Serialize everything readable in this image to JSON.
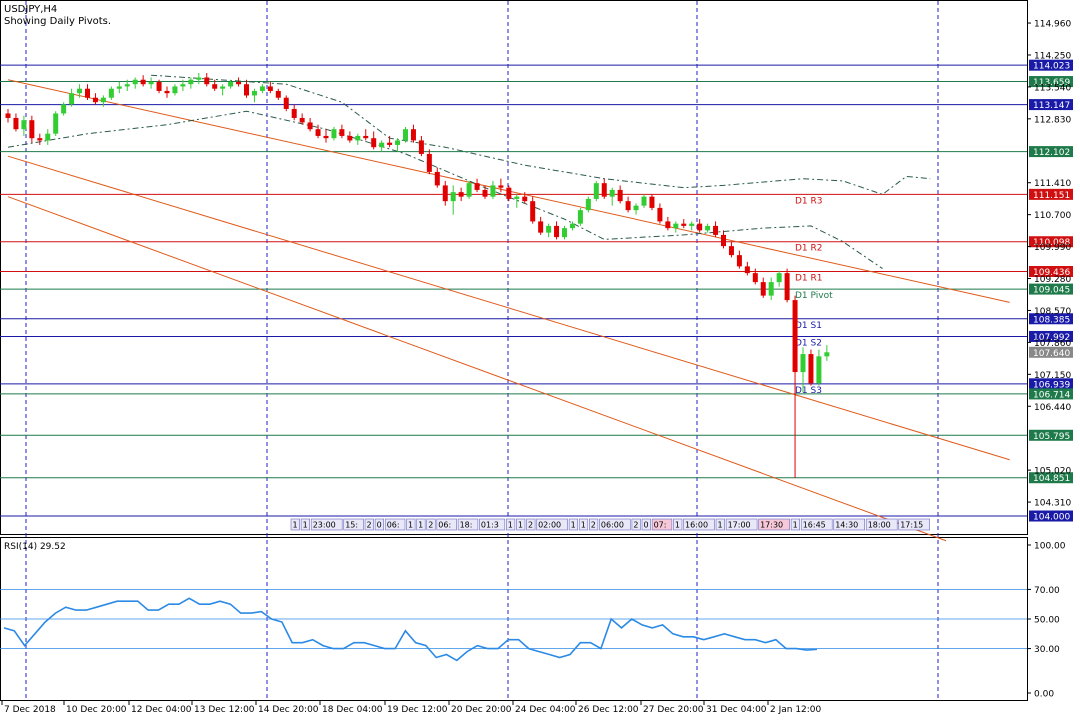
{
  "header": {
    "symbol_line": "USDJPY,H4",
    "subtitle": "Showing Daily Pivots."
  },
  "colors": {
    "bull": "#32cd32",
    "bear": "#e00000",
    "blue_line": "#1a1aa8",
    "green_line": "#1e7a4a",
    "red_line": "#d01010",
    "channel": "#e05a1a",
    "rsi_line": "#2b8ae6",
    "grid_v": "#2020cc"
  },
  "chart_data": [
    {
      "type": "candlestick",
      "title": "USDJPY,H4",
      "subtitle": "Showing Daily Pivots.",
      "ylim": [
        103.6,
        115.45
      ],
      "y_ticks": [
        "114.960",
        "114.250",
        "113.540",
        "112.830",
        "111.410",
        "110.700",
        "109.990",
        "109.280",
        "108.570",
        "107.860",
        "107.150",
        "106.440",
        "105.020",
        "104.310"
      ],
      "x_tick_labels": [
        "7 Dec 2018",
        "10 Dec 20:00",
        "12 Dec 04:00",
        "13 Dec 12:00",
        "14 Dec 20:00",
        "18 Dec 04:00",
        "19 Dec 12:00",
        "20 Dec 20:00",
        "24 Dec 04:00",
        "26 Dec 12:00",
        "27 Dec 20:00",
        "31 Dec 04:00",
        "2 Jan 12:00"
      ],
      "horizontal_levels": [
        {
          "label": "114.023",
          "value": 114.023,
          "kind": "blue",
          "tag": ""
        },
        {
          "label": "113.659",
          "value": 113.659,
          "kind": "green",
          "tag": ""
        },
        {
          "label": "113.147",
          "value": 113.147,
          "kind": "blue",
          "tag": ""
        },
        {
          "label": "112.102",
          "value": 112.102,
          "kind": "green",
          "tag": ""
        },
        {
          "label": "111.151",
          "value": 111.151,
          "kind": "red",
          "tag": "D1 R3"
        },
        {
          "label": "110.098",
          "value": 110.098,
          "kind": "red",
          "tag": "D1 R2"
        },
        {
          "label": "109.436",
          "value": 109.436,
          "kind": "red",
          "tag": "D1 R1"
        },
        {
          "label": "109.045",
          "value": 109.045,
          "kind": "green",
          "tag": "D1 Pivot"
        },
        {
          "label": "108.385",
          "value": 108.385,
          "kind": "blue",
          "tag": "D1 S1"
        },
        {
          "label": "107.992",
          "value": 107.992,
          "kind": "blue",
          "tag": "D1 S2"
        },
        {
          "label": "107.640",
          "value": 107.64,
          "kind": "price",
          "tag": ""
        },
        {
          "label": "106.939",
          "value": 106.939,
          "kind": "blue",
          "tag": "D1 S3"
        },
        {
          "label": "106.714",
          "value": 106.714,
          "kind": "green",
          "tag": ""
        },
        {
          "label": "105.795",
          "value": 105.795,
          "kind": "green",
          "tag": ""
        },
        {
          "label": "104.851",
          "value": 104.851,
          "kind": "green",
          "tag": ""
        },
        {
          "label": "104.000",
          "value": 104.0,
          "kind": "blue",
          "tag": ""
        }
      ],
      "channel_lines": [
        {
          "from_bar": 0,
          "from_value": 113.7,
          "to_bar": 126,
          "to_value": 108.75
        },
        {
          "from_bar": 0,
          "from_value": 112.0,
          "to_bar": 126,
          "to_value": 105.25
        },
        {
          "from_bar": 0,
          "from_value": 111.1,
          "to_bar": 118,
          "to_value": 103.45
        }
      ],
      "candles": [
        {
          "o": 112.95,
          "h": 113.05,
          "l": 112.75,
          "c": 112.85
        },
        {
          "o": 112.85,
          "h": 112.95,
          "l": 112.55,
          "c": 112.6
        },
        {
          "o": 112.6,
          "h": 112.9,
          "l": 112.45,
          "c": 112.8
        },
        {
          "o": 112.8,
          "h": 112.9,
          "l": 112.3,
          "c": 112.4
        },
        {
          "o": 112.4,
          "h": 112.5,
          "l": 112.25,
          "c": 112.35
        },
        {
          "o": 112.35,
          "h": 112.6,
          "l": 112.25,
          "c": 112.5
        },
        {
          "o": 112.5,
          "h": 113.0,
          "l": 112.45,
          "c": 112.95
        },
        {
          "o": 112.95,
          "h": 113.2,
          "l": 112.9,
          "c": 113.15
        },
        {
          "o": 113.15,
          "h": 113.5,
          "l": 113.1,
          "c": 113.4
        },
        {
          "o": 113.4,
          "h": 113.6,
          "l": 113.3,
          "c": 113.5
        },
        {
          "o": 113.5,
          "h": 113.6,
          "l": 113.25,
          "c": 113.3
        },
        {
          "o": 113.3,
          "h": 113.4,
          "l": 113.15,
          "c": 113.2
        },
        {
          "o": 113.2,
          "h": 113.35,
          "l": 113.1,
          "c": 113.3
        },
        {
          "o": 113.3,
          "h": 113.55,
          "l": 113.25,
          "c": 113.5
        },
        {
          "o": 113.5,
          "h": 113.65,
          "l": 113.4,
          "c": 113.55
        },
        {
          "o": 113.55,
          "h": 113.7,
          "l": 113.45,
          "c": 113.6
        },
        {
          "o": 113.6,
          "h": 113.75,
          "l": 113.5,
          "c": 113.7
        },
        {
          "o": 113.7,
          "h": 113.8,
          "l": 113.55,
          "c": 113.6
        },
        {
          "o": 113.6,
          "h": 113.75,
          "l": 113.5,
          "c": 113.65
        },
        {
          "o": 113.65,
          "h": 113.7,
          "l": 113.4,
          "c": 113.45
        },
        {
          "o": 113.45,
          "h": 113.55,
          "l": 113.3,
          "c": 113.4
        },
        {
          "o": 113.4,
          "h": 113.6,
          "l": 113.35,
          "c": 113.55
        },
        {
          "o": 113.55,
          "h": 113.7,
          "l": 113.45,
          "c": 113.6
        },
        {
          "o": 113.6,
          "h": 113.75,
          "l": 113.5,
          "c": 113.7
        },
        {
          "o": 113.7,
          "h": 113.85,
          "l": 113.6,
          "c": 113.75
        },
        {
          "o": 113.75,
          "h": 113.85,
          "l": 113.55,
          "c": 113.6
        },
        {
          "o": 113.6,
          "h": 113.7,
          "l": 113.45,
          "c": 113.5
        },
        {
          "o": 113.5,
          "h": 113.6,
          "l": 113.35,
          "c": 113.55
        },
        {
          "o": 113.55,
          "h": 113.7,
          "l": 113.5,
          "c": 113.65
        },
        {
          "o": 113.65,
          "h": 113.75,
          "l": 113.55,
          "c": 113.6
        },
        {
          "o": 113.6,
          "h": 113.7,
          "l": 113.3,
          "c": 113.35
        },
        {
          "o": 113.35,
          "h": 113.5,
          "l": 113.2,
          "c": 113.45
        },
        {
          "o": 113.45,
          "h": 113.6,
          "l": 113.4,
          "c": 113.55
        },
        {
          "o": 113.55,
          "h": 113.65,
          "l": 113.4,
          "c": 113.45
        },
        {
          "o": 113.45,
          "h": 113.5,
          "l": 113.25,
          "c": 113.3
        },
        {
          "o": 113.3,
          "h": 113.35,
          "l": 113.0,
          "c": 113.05
        },
        {
          "o": 113.05,
          "h": 113.15,
          "l": 112.8,
          "c": 112.85
        },
        {
          "o": 112.85,
          "h": 112.95,
          "l": 112.7,
          "c": 112.75
        },
        {
          "o": 112.75,
          "h": 112.85,
          "l": 112.55,
          "c": 112.6
        },
        {
          "o": 112.6,
          "h": 112.7,
          "l": 112.4,
          "c": 112.45
        },
        {
          "o": 112.45,
          "h": 112.6,
          "l": 112.3,
          "c": 112.4
        },
        {
          "o": 112.4,
          "h": 112.65,
          "l": 112.35,
          "c": 112.6
        },
        {
          "o": 112.6,
          "h": 112.7,
          "l": 112.4,
          "c": 112.45
        },
        {
          "o": 112.45,
          "h": 112.55,
          "l": 112.3,
          "c": 112.35
        },
        {
          "o": 112.35,
          "h": 112.5,
          "l": 112.25,
          "c": 112.45
        },
        {
          "o": 112.45,
          "h": 112.6,
          "l": 112.35,
          "c": 112.4
        },
        {
          "o": 112.4,
          "h": 112.55,
          "l": 112.15,
          "c": 112.2
        },
        {
          "o": 112.2,
          "h": 112.35,
          "l": 112.1,
          "c": 112.3
        },
        {
          "o": 112.3,
          "h": 112.45,
          "l": 112.2,
          "c": 112.25
        },
        {
          "o": 112.25,
          "h": 112.4,
          "l": 112.1,
          "c": 112.35
        },
        {
          "o": 112.35,
          "h": 112.65,
          "l": 112.3,
          "c": 112.6
        },
        {
          "o": 112.6,
          "h": 112.7,
          "l": 112.3,
          "c": 112.35
        },
        {
          "o": 112.35,
          "h": 112.45,
          "l": 112.0,
          "c": 112.05
        },
        {
          "o": 112.05,
          "h": 112.15,
          "l": 111.6,
          "c": 111.65
        },
        {
          "o": 111.65,
          "h": 111.75,
          "l": 111.3,
          "c": 111.35
        },
        {
          "o": 111.35,
          "h": 111.45,
          "l": 110.9,
          "c": 111.0
        },
        {
          "o": 111.0,
          "h": 111.35,
          "l": 110.7,
          "c": 111.2
        },
        {
          "o": 111.2,
          "h": 111.3,
          "l": 111.0,
          "c": 111.1
        },
        {
          "o": 111.1,
          "h": 111.45,
          "l": 111.05,
          "c": 111.4
        },
        {
          "o": 111.4,
          "h": 111.5,
          "l": 111.2,
          "c": 111.25
        },
        {
          "o": 111.25,
          "h": 111.35,
          "l": 111.05,
          "c": 111.1
        },
        {
          "o": 111.1,
          "h": 111.45,
          "l": 111.05,
          "c": 111.35
        },
        {
          "o": 111.35,
          "h": 111.5,
          "l": 111.2,
          "c": 111.3
        },
        {
          "o": 111.3,
          "h": 111.35,
          "l": 111.0,
          "c": 111.05
        },
        {
          "o": 111.05,
          "h": 111.15,
          "l": 110.85,
          "c": 111.1
        },
        {
          "o": 111.1,
          "h": 111.2,
          "l": 110.95,
          "c": 111.0
        },
        {
          "o": 111.0,
          "h": 111.1,
          "l": 110.5,
          "c": 110.55
        },
        {
          "o": 110.55,
          "h": 110.65,
          "l": 110.25,
          "c": 110.3
        },
        {
          "o": 110.3,
          "h": 110.5,
          "l": 110.2,
          "c": 110.45
        },
        {
          "o": 110.45,
          "h": 110.55,
          "l": 110.15,
          "c": 110.2
        },
        {
          "o": 110.2,
          "h": 110.45,
          "l": 110.15,
          "c": 110.4
        },
        {
          "o": 110.4,
          "h": 110.55,
          "l": 110.35,
          "c": 110.5
        },
        {
          "o": 110.5,
          "h": 110.85,
          "l": 110.45,
          "c": 110.8
        },
        {
          "o": 110.8,
          "h": 111.1,
          "l": 110.75,
          "c": 111.05
        },
        {
          "o": 111.05,
          "h": 111.45,
          "l": 111.0,
          "c": 111.4
        },
        {
          "o": 111.4,
          "h": 111.5,
          "l": 111.05,
          "c": 111.1
        },
        {
          "o": 111.1,
          "h": 111.3,
          "l": 110.9,
          "c": 111.25
        },
        {
          "o": 111.25,
          "h": 111.35,
          "l": 110.95,
          "c": 111.0
        },
        {
          "o": 111.0,
          "h": 111.1,
          "l": 110.75,
          "c": 110.8
        },
        {
          "o": 110.8,
          "h": 110.95,
          "l": 110.7,
          "c": 110.9
        },
        {
          "o": 110.9,
          "h": 111.15,
          "l": 110.85,
          "c": 111.1
        },
        {
          "o": 111.1,
          "h": 111.15,
          "l": 110.8,
          "c": 110.85
        },
        {
          "o": 110.85,
          "h": 110.95,
          "l": 110.5,
          "c": 110.55
        },
        {
          "o": 110.55,
          "h": 110.65,
          "l": 110.35,
          "c": 110.4
        },
        {
          "o": 110.4,
          "h": 110.55,
          "l": 110.3,
          "c": 110.5
        },
        {
          "o": 110.5,
          "h": 110.6,
          "l": 110.4,
          "c": 110.45
        },
        {
          "o": 110.45,
          "h": 110.55,
          "l": 110.35,
          "c": 110.5
        },
        {
          "o": 110.5,
          "h": 110.6,
          "l": 110.3,
          "c": 110.35
        },
        {
          "o": 110.35,
          "h": 110.5,
          "l": 110.3,
          "c": 110.45
        },
        {
          "o": 110.45,
          "h": 110.55,
          "l": 110.2,
          "c": 110.25
        },
        {
          "o": 110.25,
          "h": 110.35,
          "l": 109.95,
          "c": 110.0
        },
        {
          "o": 110.0,
          "h": 110.1,
          "l": 109.75,
          "c": 109.8
        },
        {
          "o": 109.8,
          "h": 109.9,
          "l": 109.5,
          "c": 109.55
        },
        {
          "o": 109.55,
          "h": 109.65,
          "l": 109.35,
          "c": 109.4
        },
        {
          "o": 109.4,
          "h": 109.5,
          "l": 109.15,
          "c": 109.2
        },
        {
          "o": 109.2,
          "h": 109.3,
          "l": 108.85,
          "c": 108.9
        },
        {
          "o": 108.9,
          "h": 109.3,
          "l": 108.8,
          "c": 109.2
        },
        {
          "o": 109.2,
          "h": 109.45,
          "l": 109.1,
          "c": 109.4
        },
        {
          "o": 109.4,
          "h": 109.5,
          "l": 108.75,
          "c": 108.8
        },
        {
          "o": 108.8,
          "h": 108.9,
          "l": 104.85,
          "c": 107.2
        },
        {
          "o": 107.2,
          "h": 107.75,
          "l": 106.75,
          "c": 107.6
        },
        {
          "o": 107.6,
          "h": 107.7,
          "l": 106.9,
          "c": 106.95
        },
        {
          "o": 106.95,
          "h": 107.7,
          "l": 106.9,
          "c": 107.55
        },
        {
          "o": 107.55,
          "h": 107.8,
          "l": 107.45,
          "c": 107.64
        }
      ],
      "envelope_upper": [
        {
          "bar": 18,
          "value": 113.8
        },
        {
          "bar": 35,
          "value": 113.6
        },
        {
          "bar": 42,
          "value": 113.2
        },
        {
          "bar": 48,
          "value": 112.4
        },
        {
          "bar": 55,
          "value": 112.2
        },
        {
          "bar": 65,
          "value": 111.8
        },
        {
          "bar": 75,
          "value": 111.5
        },
        {
          "bar": 85,
          "value": 111.3
        },
        {
          "bar": 90,
          "value": 111.35
        },
        {
          "bar": 100,
          "value": 111.5
        },
        {
          "bar": 105,
          "value": 111.45
        },
        {
          "bar": 110,
          "value": 111.15
        },
        {
          "bar": 113,
          "value": 111.55
        },
        {
          "bar": 116,
          "value": 111.5
        }
      ],
      "envelope_lower": [
        {
          "bar": 0,
          "value": 112.2
        },
        {
          "bar": 10,
          "value": 112.5
        },
        {
          "bar": 20,
          "value": 112.7
        },
        {
          "bar": 30,
          "value": 113.0
        },
        {
          "bar": 40,
          "value": 112.6
        },
        {
          "bar": 50,
          "value": 112.05
        },
        {
          "bar": 60,
          "value": 111.3
        },
        {
          "bar": 70,
          "value": 110.6
        },
        {
          "bar": 75,
          "value": 110.15
        },
        {
          "bar": 85,
          "value": 110.25
        },
        {
          "bar": 95,
          "value": 110.4
        },
        {
          "bar": 101,
          "value": 110.45
        },
        {
          "bar": 105,
          "value": 110.1
        },
        {
          "bar": 110,
          "value": 109.5
        }
      ]
    },
    {
      "type": "line",
      "title": "RSI(14) 29.52",
      "ylim": [
        0,
        100
      ],
      "y_ticks": [
        "100.00",
        "70.00",
        "50.00",
        "30.00",
        "0.00"
      ],
      "levels": [
        70,
        50,
        30
      ],
      "series": [
        {
          "name": "RSI(14)",
          "values": [
            44,
            42,
            32,
            40,
            48,
            54,
            58,
            56,
            56,
            58,
            60,
            62,
            62,
            62,
            56,
            56,
            60,
            60,
            64,
            60,
            60,
            62,
            60,
            54,
            54,
            55,
            50,
            48,
            34,
            34,
            36,
            32,
            30,
            30,
            34,
            34,
            32,
            30,
            30,
            42,
            34,
            32,
            24,
            26,
            22,
            28,
            32,
            30,
            30,
            36,
            36,
            30,
            28,
            26,
            24,
            26,
            34,
            34,
            30,
            50,
            44,
            50,
            46,
            44,
            46,
            40,
            38,
            38,
            36,
            38,
            40,
            38,
            36,
            36,
            34,
            36,
            30,
            30,
            29,
            29.52
          ]
        }
      ]
    }
  ],
  "time_markers": [
    "1",
    "1",
    "23:00",
    "15:",
    "2",
    "0",
    "06:",
    "1",
    "1",
    "2",
    "06:",
    "18:",
    "01:3",
    "1",
    "1",
    "2",
    "02:00",
    "1",
    "1",
    "2",
    "06:00",
    "2",
    "0",
    "07:",
    "1",
    "16:00",
    "1",
    "17:00",
    "17:30",
    "1",
    "16:45",
    "14:30",
    "18:00",
    "17:15"
  ]
}
